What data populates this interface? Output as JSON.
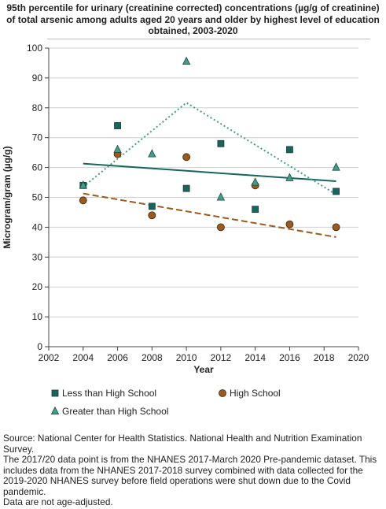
{
  "title": "95th percentile for urinary (creatinine corrected) concentrations (µg/g of creatinine) of total arsenic among adults aged 20 years and older by highest level of education obtained, 2003-2020",
  "notes": [
    "Source: National Center for Health Statistics. National Health and Nutrition Examination Survey.",
    "The 2017/20 data point is from the NHANES 2017-March 2020 Pre-pandemic dataset. This includes data from the NHANES 2017-2018 survey combined with data collected for the 2019-2020 NHANES survey before field operations were shut down due to the Covid pandemic.",
    "Data are not age-adjusted."
  ],
  "colors": {
    "less_than_hs": "#16655f",
    "high_school": "#9c5a1e",
    "greater_than_hs": "#3f9e8c",
    "grid": "#d0d0d0",
    "axis": "#444444"
  },
  "chart_data": {
    "type": "scatter",
    "title": "95th percentile for urinary (creatinine corrected) concentrations (µg/g of creatinine) of total arsenic among adults aged 20 years and older by highest level of education obtained, 2003-2020",
    "xlabel": "Year",
    "ylabel": "Microgram/gram (µg/g)",
    "xlim": [
      2002,
      2020
    ],
    "ylim": [
      0,
      100
    ],
    "xticks": [
      2002,
      2004,
      2006,
      2008,
      2010,
      2012,
      2014,
      2016,
      2018,
      2020
    ],
    "yticks": [
      0,
      10,
      20,
      30,
      40,
      50,
      60,
      70,
      80,
      90,
      100
    ],
    "grid": "horizontal",
    "legend_position": "bottom",
    "series": [
      {
        "name": "Less than High School",
        "marker": "square",
        "color": "#16655f",
        "points": [
          [
            2004,
            54
          ],
          [
            2006,
            74
          ],
          [
            2008,
            47
          ],
          [
            2010,
            53
          ],
          [
            2012,
            68
          ],
          [
            2014,
            46
          ],
          [
            2016,
            66
          ],
          [
            2018.7,
            52
          ]
        ],
        "trend": {
          "style": "solid",
          "start": [
            2004,
            61.3
          ],
          "end": [
            2018.7,
            55.4
          ]
        }
      },
      {
        "name": "High School",
        "marker": "circle",
        "color": "#9c5a1e",
        "points": [
          [
            2004,
            49
          ],
          [
            2006,
            64.5
          ],
          [
            2008,
            44
          ],
          [
            2010,
            63.5
          ],
          [
            2012,
            40
          ],
          [
            2014,
            54
          ],
          [
            2016,
            41
          ],
          [
            2018.7,
            40
          ]
        ],
        "trend": {
          "style": "dashed",
          "start": [
            2004,
            51.3
          ],
          "end": [
            2018.7,
            36.7
          ]
        }
      },
      {
        "name": "Greater than High School",
        "marker": "triangle",
        "color": "#3f9e8c",
        "points": [
          [
            2004,
            54
          ],
          [
            2006,
            66
          ],
          [
            2008,
            64.5
          ],
          [
            2010,
            95.5
          ],
          [
            2012,
            50
          ],
          [
            2014,
            55
          ],
          [
            2016,
            56.5
          ],
          [
            2018.7,
            60
          ]
        ],
        "trend": {
          "style": "dotted",
          "path": [
            [
              2004,
              53.5
            ],
            [
              2010,
              81.7
            ],
            [
              2018.7,
              51
            ]
          ]
        }
      }
    ]
  }
}
